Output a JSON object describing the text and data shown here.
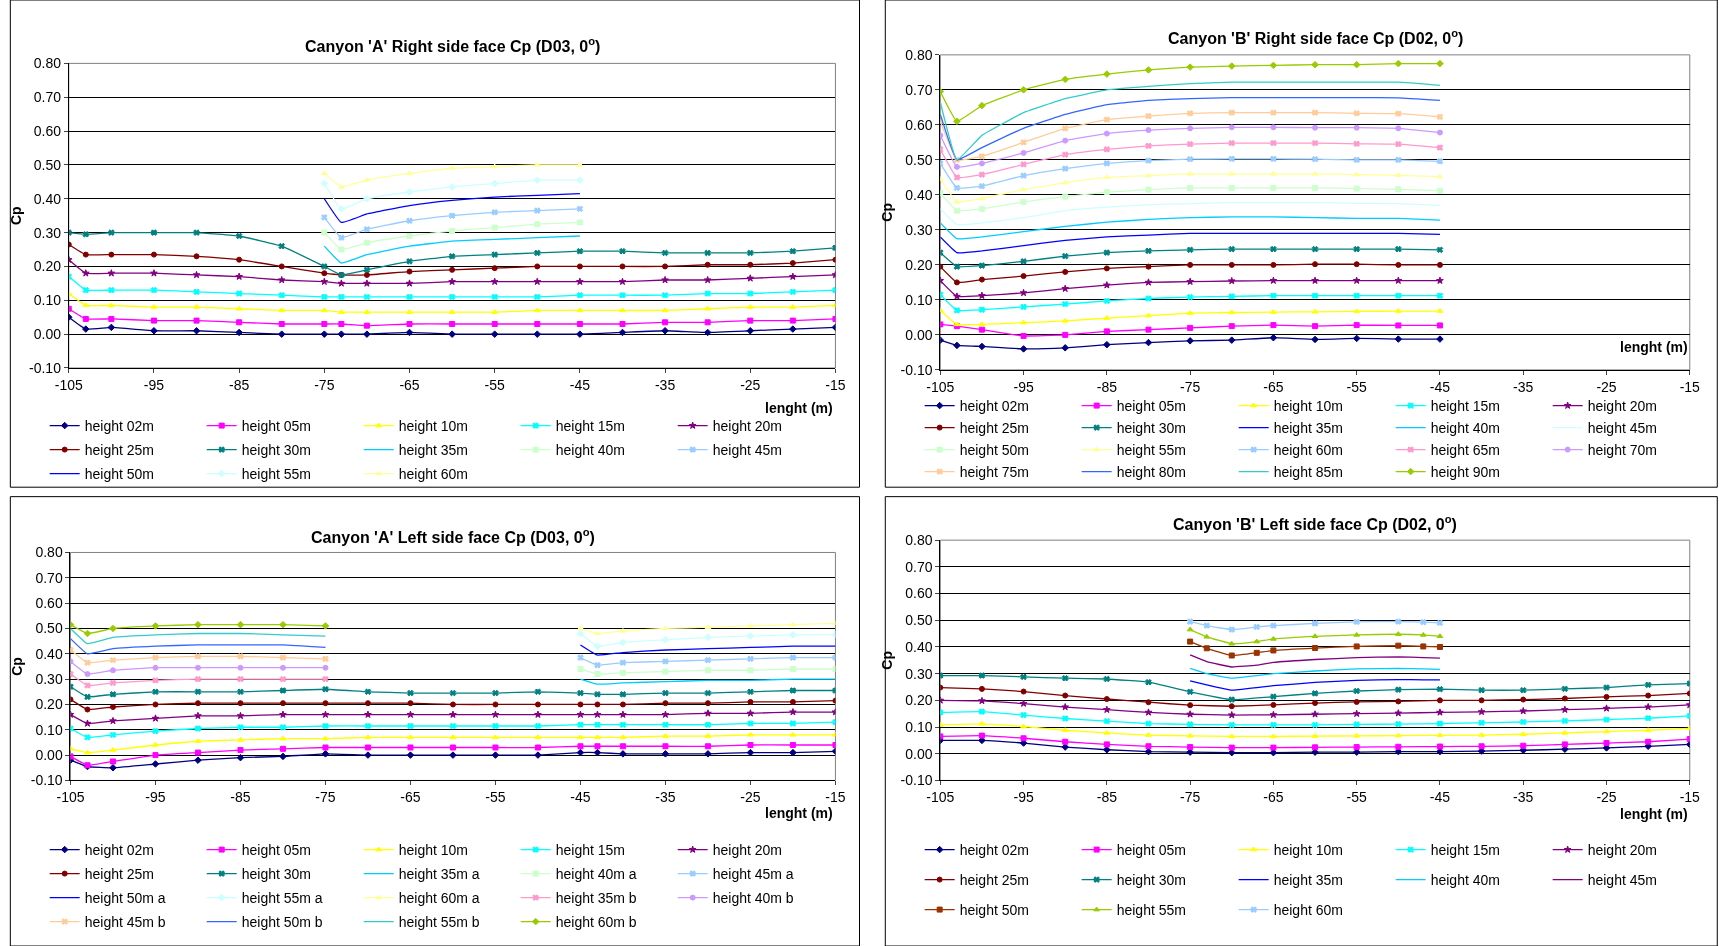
{
  "chart_data": [
    {
      "type": "line",
      "title": "Canyon 'A' Right side face Cp (D03, 0$^{o}$)",
      "xlabel": "lenght (m)",
      "ylabel": "Cp",
      "x": [
        -105,
        -103,
        -100,
        -95,
        -90,
        -85,
        -80,
        -75,
        -73,
        -70,
        -65,
        -60,
        -55,
        -50,
        -45,
        -40,
        -35,
        -30,
        -25,
        -20,
        -15
      ],
      "xlim": [
        -105,
        -15
      ],
      "xticks": [
        -105,
        -95,
        -85,
        -75,
        -65,
        -55,
        -45,
        -35,
        -25,
        -15
      ],
      "ylim": [
        -0.1,
        0.8
      ],
      "yticks": [
        {
          "value": -0.1,
          "label": "-0.10"
        },
        {
          "value": 0,
          "label": "0.00"
        },
        {
          "value": 0.1,
          "label": "0.10"
        },
        {
          "value": 0.2,
          "label": "0.20"
        },
        {
          "value": 0.3,
          "label": "0.30"
        },
        {
          "value": 0.4,
          "label": "0.40"
        },
        {
          "value": 0.5,
          "label": "0.50"
        },
        {
          "value": 0.6,
          "label": "0.60"
        },
        {
          "value": 0.7,
          "label": "0.70"
        },
        {
          "value": 0.8,
          "label": "0.80"
        }
      ],
      "grid": "y",
      "legend": "bottom",
      "series": [
        {
          "name": "height 02m",
          "color": "#000080",
          "marker": "diamond",
          "values": [
            0.05,
            0.015,
            0.02,
            0.01,
            0.01,
            0.005,
            0.0,
            0.0,
            0.0,
            0.0,
            0.005,
            0.0,
            0.0,
            0.0,
            0.0,
            0.005,
            0.01,
            0.005,
            0.01,
            0.015,
            0.02
          ]
        },
        {
          "name": "height 05m",
          "color": "#ff00ff",
          "marker": "square",
          "values": [
            0.075,
            0.045,
            0.045,
            0.04,
            0.04,
            0.035,
            0.03,
            0.03,
            0.03,
            0.025,
            0.03,
            0.03,
            0.03,
            0.03,
            0.03,
            0.03,
            0.035,
            0.035,
            0.04,
            0.04,
            0.045
          ]
        },
        {
          "name": "height 10m",
          "color": "#ffff00",
          "marker": "triangle",
          "values": [
            0.12,
            0.085,
            0.085,
            0.08,
            0.08,
            0.075,
            0.07,
            0.07,
            0.065,
            0.065,
            0.065,
            0.065,
            0.065,
            0.07,
            0.07,
            0.07,
            0.07,
            0.075,
            0.08,
            0.08,
            0.085
          ]
        },
        {
          "name": "height 15m",
          "color": "#00ffff",
          "marker": "cross",
          "values": [
            0.17,
            0.13,
            0.13,
            0.13,
            0.125,
            0.12,
            0.115,
            0.11,
            0.11,
            0.11,
            0.11,
            0.11,
            0.11,
            0.11,
            0.115,
            0.115,
            0.115,
            0.12,
            0.12,
            0.125,
            0.13
          ]
        },
        {
          "name": "height 20m",
          "color": "#800080",
          "marker": "star",
          "values": [
            0.22,
            0.18,
            0.18,
            0.18,
            0.175,
            0.17,
            0.16,
            0.155,
            0.15,
            0.15,
            0.15,
            0.155,
            0.155,
            0.155,
            0.155,
            0.155,
            0.16,
            0.16,
            0.165,
            0.17,
            0.175
          ]
        },
        {
          "name": "height 25m",
          "color": "#800000",
          "marker": "circle",
          "values": [
            0.265,
            0.235,
            0.235,
            0.235,
            0.23,
            0.22,
            0.2,
            0.18,
            0.175,
            0.175,
            0.185,
            0.19,
            0.195,
            0.2,
            0.2,
            0.2,
            0.2,
            0.205,
            0.205,
            0.21,
            0.22
          ]
        },
        {
          "name": "height 30m",
          "color": "#008080",
          "marker": "cross",
          "values": [
            0.3,
            0.295,
            0.3,
            0.3,
            0.3,
            0.29,
            0.26,
            0.2,
            0.175,
            0.19,
            0.215,
            0.23,
            0.235,
            0.24,
            0.245,
            0.245,
            0.24,
            0.24,
            0.24,
            0.245,
            0.255
          ]
        },
        {
          "name": "height 35m",
          "color": "#00ccff",
          "marker": "none",
          "x": [
            -75,
            -73,
            -70,
            -65,
            -60,
            -55,
            -50,
            -45
          ],
          "values": [
            0.26,
            0.21,
            0.235,
            0.26,
            0.275,
            0.28,
            0.285,
            0.29
          ]
        },
        {
          "name": "height 40m",
          "color": "#ccffcc",
          "marker": "square",
          "x": [
            -75,
            -73,
            -70,
            -65,
            -60,
            -55,
            -50,
            -45
          ],
          "values": [
            0.3,
            0.25,
            0.27,
            0.29,
            0.305,
            0.315,
            0.325,
            0.33
          ]
        },
        {
          "name": "height 45m",
          "color": "#99ccff",
          "marker": "cross",
          "x": [
            -75,
            -73,
            -70,
            -65,
            -60,
            -55,
            -50,
            -45
          ],
          "values": [
            0.345,
            0.285,
            0.31,
            0.335,
            0.35,
            0.36,
            0.365,
            0.37
          ]
        },
        {
          "name": "height 50m",
          "color": "#0000ff",
          "marker": "none",
          "x": [
            -75,
            -73,
            -70,
            -65,
            -60,
            -55,
            -50,
            -45
          ],
          "values": [
            0.4,
            0.33,
            0.355,
            0.38,
            0.395,
            0.405,
            0.41,
            0.415
          ]
        },
        {
          "name": "height 55m",
          "color": "#ccffff",
          "marker": "diamond",
          "x": [
            -75,
            -73,
            -70,
            -65,
            -60,
            -55,
            -50,
            -45
          ],
          "values": [
            0.445,
            0.37,
            0.4,
            0.42,
            0.435,
            0.445,
            0.455,
            0.455
          ]
        },
        {
          "name": "height 60m",
          "color": "#ffff99",
          "marker": "triangle",
          "x": [
            -75,
            -73,
            -70,
            -65,
            -60,
            -55,
            -50,
            -45
          ],
          "values": [
            0.475,
            0.435,
            0.455,
            0.475,
            0.49,
            0.495,
            0.5,
            0.5
          ]
        }
      ]
    },
    {
      "type": "line",
      "title": "Canyon 'B' Right side face Cp (D02, 0$^{o}$)",
      "xlabel": "lenght (m)",
      "ylabel": "Cp",
      "x": [
        -105,
        -103,
        -100,
        -95,
        -90,
        -85,
        -80,
        -75,
        -70,
        -65,
        -60,
        -55,
        -50,
        -45
      ],
      "xlim": [
        -105,
        -15
      ],
      "xticks": [
        -105,
        -95,
        -85,
        -75,
        -65,
        -55,
        -45,
        -35,
        -25,
        -15
      ],
      "ylim": [
        -0.1,
        0.8
      ],
      "yticks": [
        {
          "value": -0.1,
          "label": "-0.10"
        },
        {
          "value": 0,
          "label": "0.00"
        },
        {
          "value": 0.1,
          "label": "0.10"
        },
        {
          "value": 0.2,
          "label": "0.20"
        },
        {
          "value": 0.3,
          "label": "0.30"
        },
        {
          "value": 0.4,
          "label": "0.40"
        },
        {
          "value": 0.5,
          "label": "0.50"
        },
        {
          "value": 0.6,
          "label": "0.60"
        },
        {
          "value": 0.7,
          "label": "0.70"
        },
        {
          "value": 0.8,
          "label": "0.80"
        }
      ],
      "grid": "y",
      "legend": "bottom",
      "series": [
        {
          "name": "height 02m",
          "color": "#000080",
          "marker": "diamond",
          "values": [
            -0.015,
            -0.03,
            -0.033,
            -0.04,
            -0.037,
            -0.028,
            -0.022,
            -0.017,
            -0.015,
            -0.008,
            -0.013,
            -0.01,
            -0.012,
            -0.012
          ]
        },
        {
          "name": "height 05m",
          "color": "#ff00ff",
          "marker": "square",
          "values": [
            0.03,
            0.025,
            0.015,
            -0.003,
            0.0,
            0.01,
            0.015,
            0.02,
            0.025,
            0.028,
            0.025,
            0.028,
            0.027,
            0.027
          ]
        },
        {
          "name": "height 10m",
          "color": "#ffff00",
          "marker": "triangle",
          "values": [
            0.07,
            0.03,
            0.03,
            0.035,
            0.04,
            0.048,
            0.055,
            0.062,
            0.064,
            0.065,
            0.066,
            0.067,
            0.068,
            0.068
          ]
        },
        {
          "name": "height 15m",
          "color": "#00ffff",
          "marker": "cross",
          "values": [
            0.115,
            0.07,
            0.072,
            0.08,
            0.088,
            0.097,
            0.104,
            0.108,
            0.11,
            0.112,
            0.112,
            0.112,
            0.112,
            0.112
          ]
        },
        {
          "name": "height 20m",
          "color": "#800080",
          "marker": "star",
          "values": [
            0.155,
            0.11,
            0.112,
            0.12,
            0.132,
            0.142,
            0.15,
            0.152,
            0.154,
            0.155,
            0.155,
            0.155,
            0.155,
            0.155
          ]
        },
        {
          "name": "height 25m",
          "color": "#800000",
          "marker": "circle",
          "values": [
            0.195,
            0.15,
            0.158,
            0.168,
            0.18,
            0.19,
            0.195,
            0.2,
            0.2,
            0.2,
            0.202,
            0.202,
            0.2,
            0.2
          ]
        },
        {
          "name": "height 30m",
          "color": "#008080",
          "marker": "cross",
          "values": [
            0.235,
            0.195,
            0.198,
            0.21,
            0.225,
            0.235,
            0.24,
            0.243,
            0.245,
            0.245,
            0.245,
            0.245,
            0.245,
            0.243
          ]
        },
        {
          "name": "height 35m",
          "color": "#0000ff",
          "marker": "none",
          "values": [
            0.28,
            0.235,
            0.24,
            0.255,
            0.27,
            0.28,
            0.285,
            0.29,
            0.29,
            0.29,
            0.29,
            0.29,
            0.29,
            0.287
          ]
        },
        {
          "name": "height 40m",
          "color": "#00ccff",
          "marker": "none",
          "values": [
            0.32,
            0.275,
            0.28,
            0.295,
            0.31,
            0.322,
            0.33,
            0.335,
            0.337,
            0.337,
            0.335,
            0.333,
            0.333,
            0.328
          ]
        },
        {
          "name": "height 45m",
          "color": "#ccffff",
          "marker": "none",
          "values": [
            0.36,
            0.315,
            0.32,
            0.335,
            0.355,
            0.365,
            0.372,
            0.375,
            0.378,
            0.378,
            0.378,
            0.376,
            0.375,
            0.37
          ]
        },
        {
          "name": "height 50m",
          "color": "#ccffcc",
          "marker": "square",
          "values": [
            0.405,
            0.355,
            0.36,
            0.38,
            0.395,
            0.408,
            0.415,
            0.42,
            0.42,
            0.42,
            0.42,
            0.418,
            0.416,
            0.412
          ]
        },
        {
          "name": "height 55m",
          "color": "#ffff99",
          "marker": "triangle",
          "values": [
            0.445,
            0.38,
            0.39,
            0.415,
            0.435,
            0.45,
            0.455,
            0.46,
            0.46,
            0.46,
            0.46,
            0.458,
            0.456,
            0.452
          ]
        },
        {
          "name": "height 60m",
          "color": "#99ccff",
          "marker": "cross",
          "values": [
            0.49,
            0.42,
            0.425,
            0.455,
            0.475,
            0.49,
            0.498,
            0.502,
            0.503,
            0.503,
            0.502,
            0.5,
            0.5,
            0.496
          ]
        },
        {
          "name": "height 65m",
          "color": "#ff99cc",
          "marker": "cross",
          "values": [
            0.53,
            0.45,
            0.458,
            0.487,
            0.515,
            0.53,
            0.54,
            0.545,
            0.548,
            0.548,
            0.548,
            0.546,
            0.545,
            0.535
          ]
        },
        {
          "name": "height 70m",
          "color": "#cc99ff",
          "marker": "circle",
          "values": [
            0.57,
            0.48,
            0.49,
            0.52,
            0.555,
            0.575,
            0.585,
            0.59,
            0.593,
            0.593,
            0.592,
            0.592,
            0.59,
            0.578
          ]
        },
        {
          "name": "height 75m",
          "color": "#ffcc99",
          "marker": "cross",
          "values": [
            0.61,
            0.5,
            0.51,
            0.55,
            0.59,
            0.615,
            0.625,
            0.633,
            0.635,
            0.635,
            0.635,
            0.633,
            0.632,
            0.623
          ]
        },
        {
          "name": "height 80m",
          "color": "#3366ff",
          "marker": "none",
          "values": [
            0.63,
            0.5,
            0.535,
            0.59,
            0.63,
            0.658,
            0.67,
            0.675,
            0.678,
            0.678,
            0.678,
            0.678,
            0.677,
            0.67
          ]
        },
        {
          "name": "height 85m",
          "color": "#33cccc",
          "marker": "none",
          "values": [
            0.665,
            0.5,
            0.57,
            0.635,
            0.675,
            0.7,
            0.71,
            0.718,
            0.722,
            0.722,
            0.722,
            0.722,
            0.722,
            0.713
          ]
        },
        {
          "name": "height 90m",
          "color": "#99cc00",
          "marker": "diamond",
          "values": [
            0.695,
            0.61,
            0.655,
            0.7,
            0.73,
            0.745,
            0.757,
            0.765,
            0.768,
            0.77,
            0.772,
            0.772,
            0.775,
            0.775
          ]
        }
      ]
    },
    {
      "type": "line",
      "title": "Canyon 'A' Left side face Cp (D03, 0$^{o}$)",
      "xlabel": "lenght (m)",
      "ylabel": "Cp",
      "x": [
        -105,
        -103,
        -100,
        -95,
        -90,
        -85,
        -80,
        -75,
        -70,
        -65,
        -60,
        -55,
        -50,
        -45,
        -43,
        -40,
        -35,
        -30,
        -25,
        -20,
        -15
      ],
      "xlim": [
        -105,
        -15
      ],
      "xticks": [
        -105,
        -95,
        -85,
        -75,
        -65,
        -55,
        -45,
        -35,
        -25,
        -15
      ],
      "ylim": [
        -0.1,
        0.8
      ],
      "yticks": [
        {
          "value": -0.1,
          "label": "-0.10"
        },
        {
          "value": 0,
          "label": "0.00"
        },
        {
          "value": 0.1,
          "label": "0.10"
        },
        {
          "value": 0.2,
          "label": "0.20"
        },
        {
          "value": 0.3,
          "label": "0.30"
        },
        {
          "value": 0.4,
          "label": "0.40"
        },
        {
          "value": 0.5,
          "label": "0.50"
        },
        {
          "value": 0.6,
          "label": "0.60"
        },
        {
          "value": 0.7,
          "label": "0.70"
        },
        {
          "value": 0.8,
          "label": "0.80"
        }
      ],
      "grid": "y",
      "legend": "bottom",
      "series": [
        {
          "name": "height 02m",
          "color": "#000080",
          "marker": "diamond",
          "values": [
            -0.02,
            -0.045,
            -0.05,
            -0.035,
            -0.02,
            -0.01,
            -0.005,
            0.005,
            0.0,
            0.0,
            0.0,
            0.0,
            0.0,
            0.01,
            0.01,
            0.005,
            0.005,
            0.005,
            0.01,
            0.01,
            0.015
          ]
        },
        {
          "name": "height 05m",
          "color": "#ff00ff",
          "marker": "square",
          "values": [
            -0.005,
            -0.04,
            -0.025,
            0.0,
            0.01,
            0.02,
            0.025,
            0.03,
            0.03,
            0.03,
            0.03,
            0.03,
            0.03,
            0.035,
            0.035,
            0.035,
            0.035,
            0.035,
            0.04,
            0.04,
            0.04
          ]
        },
        {
          "name": "height 10m",
          "color": "#ffff00",
          "marker": "triangle",
          "values": [
            0.025,
            0.01,
            0.02,
            0.04,
            0.055,
            0.06,
            0.065,
            0.065,
            0.07,
            0.07,
            0.07,
            0.07,
            0.07,
            0.07,
            0.07,
            0.07,
            0.075,
            0.075,
            0.08,
            0.08,
            0.08
          ]
        },
        {
          "name": "height 15m",
          "color": "#00ffff",
          "marker": "cross",
          "values": [
            0.105,
            0.07,
            0.08,
            0.095,
            0.105,
            0.11,
            0.11,
            0.115,
            0.115,
            0.115,
            0.115,
            0.115,
            0.115,
            0.12,
            0.12,
            0.12,
            0.12,
            0.12,
            0.125,
            0.125,
            0.13
          ]
        },
        {
          "name": "height 20m",
          "color": "#800080",
          "marker": "star",
          "values": [
            0.16,
            0.125,
            0.135,
            0.145,
            0.155,
            0.155,
            0.16,
            0.16,
            0.16,
            0.16,
            0.16,
            0.16,
            0.16,
            0.16,
            0.16,
            0.16,
            0.16,
            0.165,
            0.165,
            0.17,
            0.17
          ]
        },
        {
          "name": "height 25m",
          "color": "#800000",
          "marker": "circle",
          "values": [
            0.22,
            0.18,
            0.19,
            0.2,
            0.205,
            0.205,
            0.205,
            0.205,
            0.205,
            0.205,
            0.2,
            0.2,
            0.2,
            0.2,
            0.2,
            0.2,
            0.205,
            0.205,
            0.21,
            0.21,
            0.215
          ]
        },
        {
          "name": "height 30m",
          "color": "#008080",
          "marker": "cross",
          "values": [
            0.27,
            0.23,
            0.24,
            0.25,
            0.25,
            0.25,
            0.255,
            0.26,
            0.25,
            0.245,
            0.245,
            0.245,
            0.25,
            0.245,
            0.24,
            0.24,
            0.245,
            0.245,
            0.25,
            0.255,
            0.255
          ]
        },
        {
          "name": "height 35m a",
          "color": "#00ccff",
          "marker": "none",
          "x": [
            -45,
            -43,
            -40,
            -35,
            -30,
            -25,
            -20,
            -15
          ],
          "values": [
            0.3,
            0.28,
            0.285,
            0.29,
            0.295,
            0.295,
            0.3,
            0.3
          ]
        },
        {
          "name": "height 40m a",
          "color": "#ccffcc",
          "marker": "square",
          "x": [
            -45,
            -43,
            -40,
            -35,
            -30,
            -25,
            -20,
            -15
          ],
          "values": [
            0.34,
            0.32,
            0.325,
            0.33,
            0.335,
            0.335,
            0.34,
            0.34
          ]
        },
        {
          "name": "height 45m a",
          "color": "#99ccff",
          "marker": "cross",
          "x": [
            -45,
            -43,
            -40,
            -35,
            -30,
            -25,
            -20,
            -15
          ],
          "values": [
            0.385,
            0.355,
            0.365,
            0.37,
            0.375,
            0.38,
            0.385,
            0.385
          ]
        },
        {
          "name": "height 50m a",
          "color": "#0000ff",
          "marker": "none",
          "x": [
            -45,
            -43,
            -40,
            -35,
            -30,
            -25,
            -20,
            -15
          ],
          "values": [
            0.435,
            0.395,
            0.405,
            0.415,
            0.42,
            0.425,
            0.43,
            0.43
          ]
        },
        {
          "name": "height 55m a",
          "color": "#ccffff",
          "marker": "diamond",
          "x": [
            -45,
            -43,
            -40,
            -35,
            -30,
            -25,
            -20,
            -15
          ],
          "values": [
            0.48,
            0.43,
            0.445,
            0.455,
            0.465,
            0.47,
            0.475,
            0.475
          ]
        },
        {
          "name": "height 60m a",
          "color": "#ffff99",
          "marker": "triangle",
          "x": [
            -45,
            -43,
            -40,
            -35,
            -30,
            -25,
            -20,
            -15
          ],
          "values": [
            0.5,
            0.48,
            0.49,
            0.5,
            0.505,
            0.51,
            0.515,
            0.52
          ]
        },
        {
          "name": "height 35m b",
          "color": "#ff99cc",
          "marker": "cross",
          "x": [
            -105,
            -103,
            -100,
            -95,
            -90,
            -85,
            -80,
            -75
          ],
          "values": [
            0.32,
            0.275,
            0.285,
            0.295,
            0.3,
            0.3,
            0.3,
            0.3
          ]
        },
        {
          "name": "height 40m b",
          "color": "#cc99ff",
          "marker": "circle",
          "x": [
            -105,
            -103,
            -100,
            -95,
            -90,
            -85,
            -80,
            -75
          ],
          "values": [
            0.37,
            0.32,
            0.335,
            0.345,
            0.345,
            0.345,
            0.345,
            0.345
          ]
        },
        {
          "name": "height 45m b",
          "color": "#ffcc99",
          "marker": "cross",
          "x": [
            -105,
            -103,
            -100,
            -95,
            -90,
            -85,
            -80,
            -75
          ],
          "values": [
            0.415,
            0.365,
            0.375,
            0.385,
            0.39,
            0.39,
            0.385,
            0.38
          ]
        },
        {
          "name": "height 50m b",
          "color": "#3366ff",
          "marker": "none",
          "x": [
            -105,
            -103,
            -100,
            -95,
            -90,
            -85,
            -80,
            -75
          ],
          "values": [
            0.46,
            0.4,
            0.42,
            0.43,
            0.435,
            0.435,
            0.435,
            0.425
          ]
        },
        {
          "name": "height 55m b",
          "color": "#33cccc",
          "marker": "none",
          "x": [
            -105,
            -103,
            -100,
            -95,
            -90,
            -85,
            -80,
            -75
          ],
          "values": [
            0.5,
            0.44,
            0.465,
            0.475,
            0.48,
            0.48,
            0.475,
            0.47
          ]
        },
        {
          "name": "height 60m b",
          "color": "#99cc00",
          "marker": "diamond",
          "x": [
            -105,
            -103,
            -100,
            -95,
            -90,
            -85,
            -80,
            -75
          ],
          "values": [
            0.515,
            0.48,
            0.5,
            0.51,
            0.515,
            0.515,
            0.515,
            0.51
          ]
        }
      ]
    },
    {
      "type": "line",
      "title": "Canyon 'B' Left side face Cp (D02, 0$^{o}$)",
      "xlabel": "lenght (m)",
      "ylabel": "Cp",
      "x": [
        -105,
        -100,
        -95,
        -90,
        -85,
        -80,
        -75,
        -70,
        -65,
        -60,
        -55,
        -50,
        -45,
        -40,
        -35,
        -30,
        -25,
        -20,
        -15
      ],
      "xlim": [
        -105,
        -15
      ],
      "xticks": [
        -105,
        -95,
        -85,
        -75,
        -65,
        -55,
        -45,
        -35,
        -25,
        -15
      ],
      "ylim": [
        -0.1,
        0.8
      ],
      "yticks": [
        {
          "value": -0.1,
          "label": "-0.10"
        },
        {
          "value": 0,
          "label": "0.00"
        },
        {
          "value": 0.1,
          "label": "0.10"
        },
        {
          "value": 0.2,
          "label": "0.20"
        },
        {
          "value": 0.3,
          "label": "0.30"
        },
        {
          "value": 0.4,
          "label": "0.40"
        },
        {
          "value": 0.5,
          "label": "0.50"
        },
        {
          "value": 0.6,
          "label": "0.60"
        },
        {
          "value": 0.7,
          "label": "0.70"
        },
        {
          "value": 0.8,
          "label": "0.80"
        }
      ],
      "grid": "y",
      "legend": "bottom",
      "series": [
        {
          "name": "height 02m",
          "color": "#000080",
          "marker": "diamond",
          "values": [
            0.05,
            0.05,
            0.04,
            0.025,
            0.015,
            0.008,
            0.006,
            0.004,
            0.004,
            0.006,
            0.006,
            0.008,
            0.008,
            0.01,
            0.013,
            0.017,
            0.022,
            0.028,
            0.035
          ]
        },
        {
          "name": "height 05m",
          "color": "#ff00ff",
          "marker": "square",
          "values": [
            0.065,
            0.068,
            0.058,
            0.045,
            0.035,
            0.028,
            0.025,
            0.023,
            0.023,
            0.024,
            0.025,
            0.026,
            0.027,
            0.028,
            0.03,
            0.035,
            0.04,
            0.045,
            0.055
          ]
        },
        {
          "name": "height 10m",
          "color": "#ffff00",
          "marker": "triangle",
          "values": [
            0.108,
            0.112,
            0.102,
            0.088,
            0.078,
            0.07,
            0.067,
            0.065,
            0.065,
            0.066,
            0.067,
            0.068,
            0.069,
            0.07,
            0.073,
            0.078,
            0.083,
            0.088,
            0.095
          ]
        },
        {
          "name": "height 15m",
          "color": "#00ffff",
          "marker": "cross",
          "values": [
            0.155,
            0.158,
            0.145,
            0.132,
            0.122,
            0.113,
            0.11,
            0.108,
            0.108,
            0.108,
            0.11,
            0.111,
            0.113,
            0.116,
            0.119,
            0.123,
            0.128,
            0.133,
            0.142
          ]
        },
        {
          "name": "height 20m",
          "color": "#800080",
          "marker": "star",
          "values": [
            0.2,
            0.198,
            0.188,
            0.175,
            0.165,
            0.155,
            0.148,
            0.145,
            0.146,
            0.148,
            0.15,
            0.152,
            0.155,
            0.157,
            0.16,
            0.165,
            0.17,
            0.175,
            0.183
          ]
        },
        {
          "name": "height 25m",
          "color": "#800000",
          "marker": "circle",
          "values": [
            0.248,
            0.243,
            0.233,
            0.218,
            0.205,
            0.193,
            0.182,
            0.178,
            0.183,
            0.19,
            0.194,
            0.196,
            0.2,
            0.2,
            0.203,
            0.207,
            0.213,
            0.218,
            0.226
          ]
        },
        {
          "name": "height 30m",
          "color": "#008080",
          "marker": "cross",
          "values": [
            0.293,
            0.293,
            0.288,
            0.283,
            0.28,
            0.268,
            0.232,
            0.203,
            0.214,
            0.226,
            0.235,
            0.24,
            0.242,
            0.238,
            0.238,
            0.243,
            0.248,
            0.258,
            0.263
          ]
        },
        {
          "name": "height 35m",
          "color": "#0000ff",
          "marker": "none",
          "x": [
            -75,
            -73,
            -70,
            -67,
            -65,
            -60,
            -55,
            -50,
            -47,
            -45
          ],
          "values": [
            0.273,
            0.258,
            0.238,
            0.248,
            0.255,
            0.267,
            0.275,
            0.278,
            0.277,
            0.277
          ]
        },
        {
          "name": "height 40m",
          "color": "#00ccff",
          "marker": "none",
          "x": [
            -75,
            -73,
            -70,
            -67,
            -65,
            -60,
            -55,
            -50,
            -47,
            -45
          ],
          "values": [
            0.32,
            0.3,
            0.283,
            0.293,
            0.3,
            0.31,
            0.318,
            0.32,
            0.318,
            0.316
          ]
        },
        {
          "name": "height 45m",
          "color": "#800080",
          "marker": "none",
          "x": [
            -75,
            -73,
            -70,
            -67,
            -65,
            -60,
            -55,
            -50,
            -47,
            -45
          ],
          "values": [
            0.37,
            0.345,
            0.325,
            0.332,
            0.342,
            0.353,
            0.36,
            0.363,
            0.36,
            0.358
          ]
        },
        {
          "name": "height 50m",
          "color": "#993300",
          "marker": "square",
          "x": [
            -75,
            -73,
            -70,
            -67,
            -65,
            -60,
            -55,
            -50,
            -47,
            -45
          ],
          "values": [
            0.42,
            0.395,
            0.368,
            0.378,
            0.387,
            0.396,
            0.402,
            0.405,
            0.402,
            0.4
          ]
        },
        {
          "name": "height 55m",
          "color": "#99cc00",
          "marker": "triangle",
          "x": [
            -75,
            -73,
            -70,
            -67,
            -65,
            -60,
            -55,
            -50,
            -47,
            -45
          ],
          "values": [
            0.465,
            0.438,
            0.412,
            0.42,
            0.43,
            0.44,
            0.445,
            0.448,
            0.445,
            0.44
          ]
        },
        {
          "name": "height 60m",
          "color": "#99ccff",
          "marker": "cross",
          "x": [
            -75,
            -73,
            -70,
            -67,
            -65,
            -60,
            -55,
            -50,
            -47,
            -45
          ],
          "values": [
            0.495,
            0.48,
            0.465,
            0.475,
            0.48,
            0.488,
            0.494,
            0.495,
            0.493,
            0.49
          ]
        }
      ]
    }
  ]
}
